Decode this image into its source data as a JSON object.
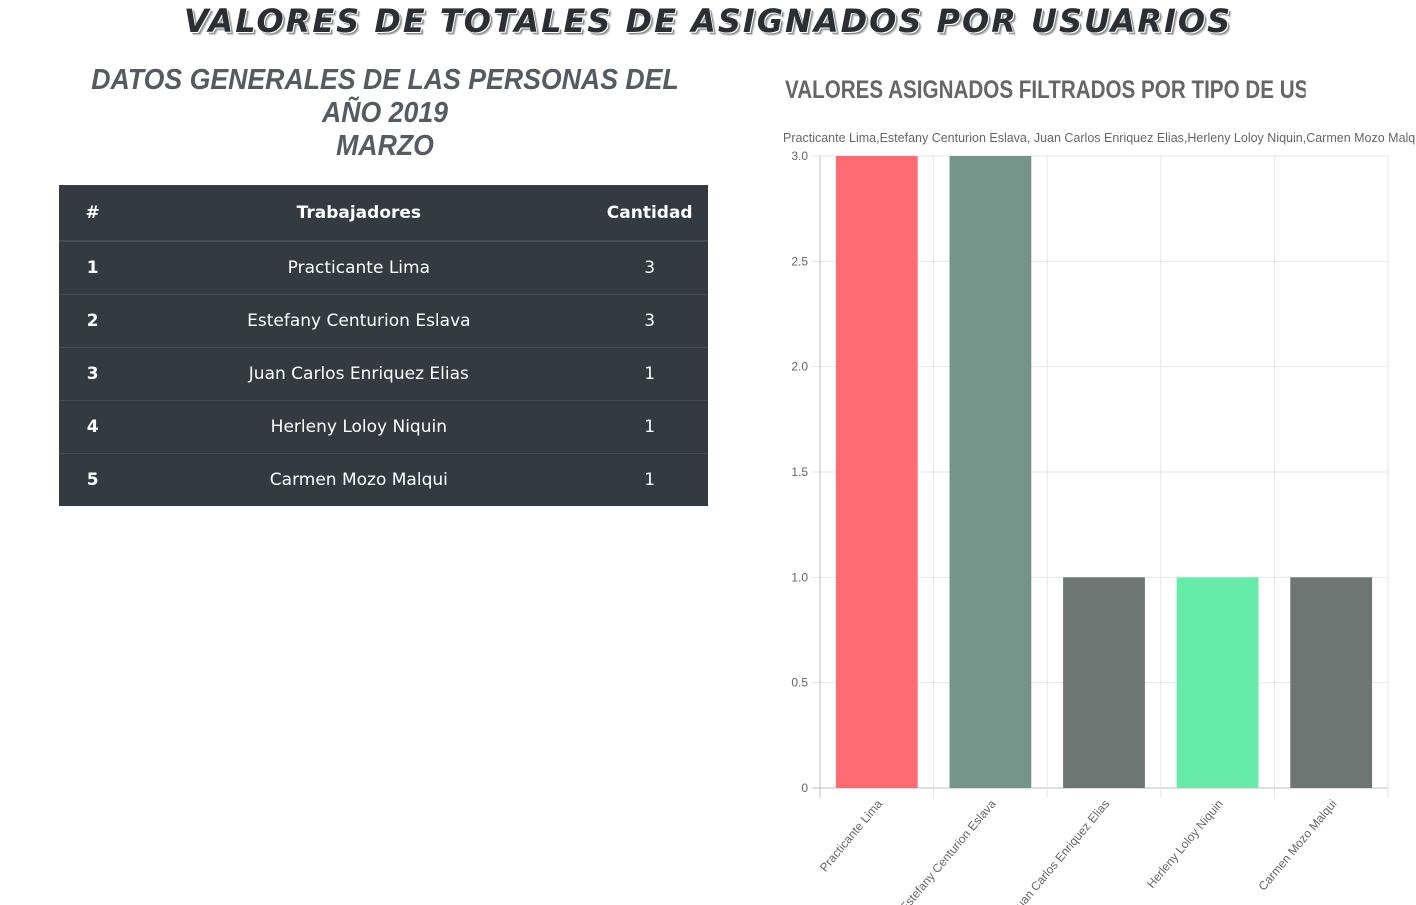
{
  "page": {
    "main_title": "VALORES DE TOTALES DE ASIGNADOS POR USUARIOS",
    "sub_title_line1": "DATOS GENERALES DE LAS PERSONAS DEL AÑO 2019",
    "sub_title_line2": "MARZO"
  },
  "table": {
    "headers": [
      "#",
      "Trabajadores",
      "Cantidad"
    ],
    "rows": [
      {
        "n": "1",
        "name": "Practicante Lima",
        "qty": "3"
      },
      {
        "n": "2",
        "name": "Estefany Centurion Eslava",
        "qty": "3"
      },
      {
        "n": "3",
        "name": "Juan Carlos Enriquez Elias",
        "qty": "1"
      },
      {
        "n": "4",
        "name": "Herleny Loloy Niquin",
        "qty": "1"
      },
      {
        "n": "5",
        "name": "Carmen Mozo Malqui",
        "qty": "1"
      }
    ]
  },
  "chart_data": {
    "type": "bar",
    "title": "VALORES ASIGNADOS FILTRADOS POR TIPO DE USUARIOS",
    "legend_label": "Practicante Lima,Estefany Centurion Eslava, Juan Carlos Enriquez Elias,Herleny Loloy Niquin,Carmen Mozo Malqui",
    "categories": [
      "Practicante Lima",
      "Estefany Centurion Eslava",
      "Juan Carlos Enriquez Elias",
      "Herleny Loloy Niquin",
      "Carmen Mozo Malqui"
    ],
    "values": [
      3,
      3,
      1,
      1,
      1
    ],
    "colors": [
      "#ff6b73",
      "#76958a",
      "#6d7673",
      "#67eba8",
      "#6d7673"
    ],
    "ylim": [
      0,
      3
    ],
    "yticks": [
      0,
      0.5,
      1.0,
      1.5,
      2.0,
      2.5,
      3.0
    ],
    "ytick_labels": [
      "0",
      "0.5",
      "1.0",
      "1.5",
      "2.0",
      "2.5",
      "3.0"
    ],
    "grid": true
  }
}
